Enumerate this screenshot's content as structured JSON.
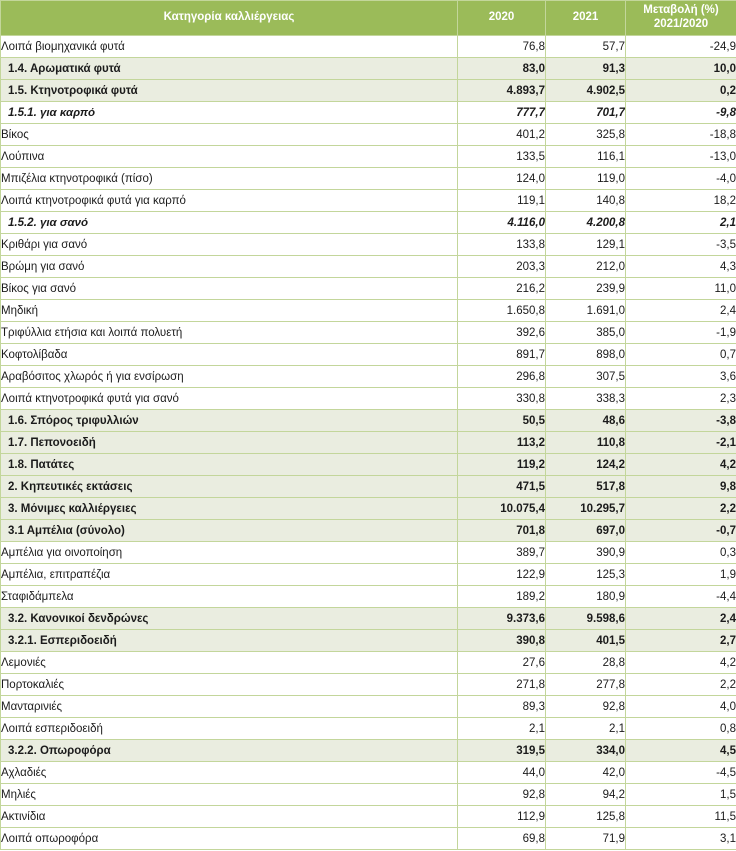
{
  "colors": {
    "header_bg": "#9BBB59",
    "header_text": "#FFFFFF",
    "border": "#C3D69B",
    "section_row_bg": "#EAEDE0"
  },
  "table": {
    "columns": [
      "Κατηγορία καλλιέργειας",
      "2020",
      "2021",
      "Μεταβολή (%) 2021/2020"
    ],
    "change_header": {
      "line1": "Μεταβολή (%)",
      "line2": "2021/2020"
    },
    "rows": [
      {
        "type": "item",
        "label": "Λοιπά βιομηχανικά φυτά",
        "v2020": "76,8",
        "v2021": "57,7",
        "change": "-24,9"
      },
      {
        "type": "section",
        "label": "1.4. Αρωματικά φυτά",
        "v2020": "83,0",
        "v2021": "91,3",
        "change": "10,0"
      },
      {
        "type": "section",
        "label": "1.5. Κτηνοτροφικά φυτά",
        "v2020": "4.893,7",
        "v2021": "4.902,5",
        "change": "0,2"
      },
      {
        "type": "subsection",
        "label": "1.5.1. για καρπό",
        "v2020": "777,7",
        "v2021": "701,7",
        "change": "-9,8"
      },
      {
        "type": "item",
        "label": "Βίκος",
        "v2020": "401,2",
        "v2021": "325,8",
        "change": "-18,8"
      },
      {
        "type": "item",
        "label": "Λούπινα",
        "v2020": "133,5",
        "v2021": "116,1",
        "change": "-13,0"
      },
      {
        "type": "item",
        "label": "Μπιζέλια κτηνοτροφικά (πίσο)",
        "v2020": "124,0",
        "v2021": "119,0",
        "change": "-4,0"
      },
      {
        "type": "item",
        "label": "Λοιπά κτηνοτροφικά φυτά για καρπό",
        "v2020": "119,1",
        "v2021": "140,8",
        "change": "18,2"
      },
      {
        "type": "subsection",
        "label": "1.5.2. για σανό",
        "v2020": "4.116,0",
        "v2021": "4.200,8",
        "change": "2,1"
      },
      {
        "type": "item",
        "label": "Κριθάρι για σανό",
        "v2020": "133,8",
        "v2021": "129,1",
        "change": "-3,5"
      },
      {
        "type": "item",
        "label": "Βρώμη για σανό",
        "v2020": "203,3",
        "v2021": "212,0",
        "change": "4,3"
      },
      {
        "type": "item",
        "label": "Βίκος για σανό",
        "v2020": "216,2",
        "v2021": "239,9",
        "change": "11,0"
      },
      {
        "type": "item",
        "label": "Μηδική",
        "v2020": "1.650,8",
        "v2021": "1.691,0",
        "change": "2,4"
      },
      {
        "type": "item",
        "label": "Τριφύλλια ετήσια και λοιπά πολυετή",
        "v2020": "392,6",
        "v2021": "385,0",
        "change": "-1,9"
      },
      {
        "type": "item",
        "label": "Κοφτολίβαδα",
        "v2020": "891,7",
        "v2021": "898,0",
        "change": "0,7"
      },
      {
        "type": "item",
        "label": "Αραβόσιτος χλωρός ή για ενσίρωση",
        "v2020": "296,8",
        "v2021": "307,5",
        "change": "3,6"
      },
      {
        "type": "item",
        "label": "Λοιπά κτηνοτροφικά φυτά για σανό",
        "v2020": "330,8",
        "v2021": "338,3",
        "change": "2,3"
      },
      {
        "type": "section",
        "label": "1.6. Σπόρος τριφυλλιών",
        "v2020": "50,5",
        "v2021": "48,6",
        "change": "-3,8"
      },
      {
        "type": "section",
        "label": "1.7. Πεπονοειδή",
        "v2020": "113,2",
        "v2021": "110,8",
        "change": "-2,1"
      },
      {
        "type": "section",
        "label": "1.8. Πατάτες",
        "v2020": "119,2",
        "v2021": "124,2",
        "change": "4,2"
      },
      {
        "type": "section",
        "label": "2. Κηπευτικές εκτάσεις",
        "v2020": "471,5",
        "v2021": "517,8",
        "change": "9,8"
      },
      {
        "type": "section",
        "label": "3. Μόνιμες καλλιέργειες",
        "v2020": "10.075,4",
        "v2021": "10.295,7",
        "change": "2,2"
      },
      {
        "type": "section",
        "label": "3.1 Αμπέλια  (σύνολο)",
        "v2020": "701,8",
        "v2021": "697,0",
        "change": "-0,7"
      },
      {
        "type": "item",
        "label": "Αμπέλια για οινοποίηση",
        "v2020": "389,7",
        "v2021": "390,9",
        "change": "0,3"
      },
      {
        "type": "item",
        "label": "Αμπέλια, επιτραπέζια",
        "v2020": "122,9",
        "v2021": "125,3",
        "change": "1,9"
      },
      {
        "type": "item",
        "label": "Σταφιδάμπελα",
        "v2020": "189,2",
        "v2021": "180,9",
        "change": "-4,4"
      },
      {
        "type": "section",
        "label": "3.2. Κανονικοί δενδρώνες",
        "v2020": "9.373,6",
        "v2021": "9.598,6",
        "change": "2,4"
      },
      {
        "type": "section",
        "label": "3.2.1. Εσπεριδοειδή",
        "v2020": "390,8",
        "v2021": "401,5",
        "change": "2,7"
      },
      {
        "type": "item",
        "label": "Λεμονιές",
        "v2020": "27,6",
        "v2021": "28,8",
        "change": "4,2"
      },
      {
        "type": "item",
        "label": "Πορτοκαλιές",
        "v2020": "271,8",
        "v2021": "277,8",
        "change": "2,2"
      },
      {
        "type": "item",
        "label": "Μανταρινιές",
        "v2020": "89,3",
        "v2021": "92,8",
        "change": "4,0"
      },
      {
        "type": "item",
        "label": "Λοιπά εσπεριδοειδή",
        "v2020": "2,1",
        "v2021": "2,1",
        "change": "0,8"
      },
      {
        "type": "section",
        "label": "3.2.2. Οπωροφόρα",
        "v2020": "319,5",
        "v2021": "334,0",
        "change": "4,5"
      },
      {
        "type": "item",
        "label": "Αχλαδιές",
        "v2020": "44,0",
        "v2021": "42,0",
        "change": "-4,5"
      },
      {
        "type": "item",
        "label": "Μηλιές",
        "v2020": "92,8",
        "v2021": "94,2",
        "change": "1,5"
      },
      {
        "type": "item",
        "label": "Ακτινίδια",
        "v2020": "112,9",
        "v2021": "125,8",
        "change": "11,5"
      },
      {
        "type": "item",
        "label": "Λοιπά οπωροφόρα",
        "v2020": "69,8",
        "v2021": "71,9",
        "change": "3,1"
      }
    ]
  }
}
